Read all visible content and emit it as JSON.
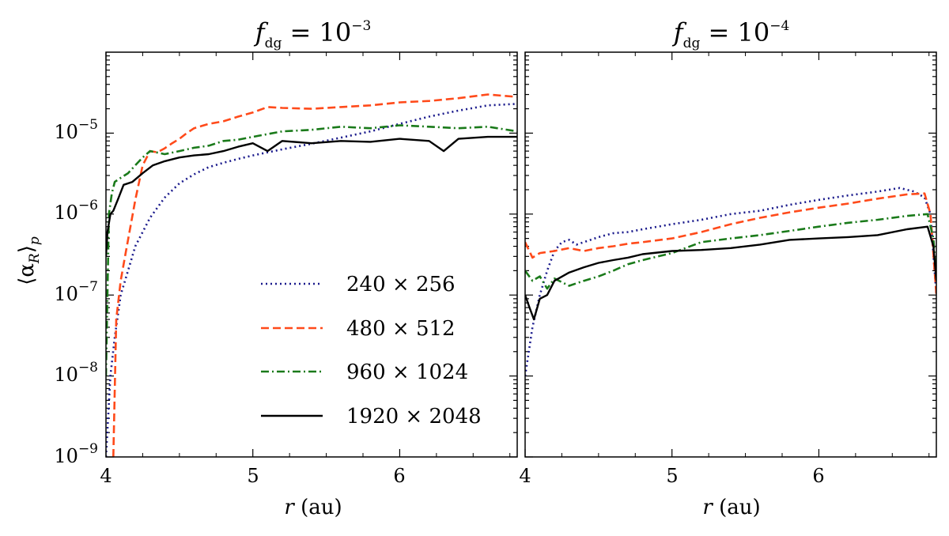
{
  "chart_data": {
    "type": "line",
    "y_scale": "log",
    "shared_ylabel": "⟨α_R⟩_p",
    "ylabel_parts": {
      "main": "⟨α",
      "sub_r": "R",
      "close": "⟩",
      "sub_p": "p"
    },
    "ylim": [
      1e-09,
      0.0001
    ],
    "y_ticks": [
      {
        "base": "10",
        "exp": "−5",
        "value": 1e-05
      },
      {
        "base": "10",
        "exp": "−6",
        "value": 1e-06
      },
      {
        "base": "10",
        "exp": "−7",
        "value": 1e-07
      },
      {
        "base": "10",
        "exp": "−8",
        "value": 1e-08
      },
      {
        "base": "10",
        "exp": "−9",
        "value": 1e-09
      }
    ],
    "legend": {
      "placement": "lower-right of left panel",
      "entries": [
        {
          "label": "240 × 256",
          "series": "240x256"
        },
        {
          "label": "480 × 512",
          "series": "480x512"
        },
        {
          "label": "960 × 1024",
          "series": "960x1024"
        },
        {
          "label": "1920 × 2048",
          "series": "1920x2048"
        }
      ]
    },
    "series_styles": [
      {
        "id": "240x256",
        "color": "#1a1a8c",
        "dash": "dotted"
      },
      {
        "id": "480x512",
        "color": "#ff4a1a",
        "dash": "dashed"
      },
      {
        "id": "960x1024",
        "color": "#1a7a1a",
        "dash": "dashdot"
      },
      {
        "id": "1920x2048",
        "color": "#000000",
        "dash": "solid"
      }
    ],
    "panels": [
      {
        "id": "left",
        "title_base": "f",
        "title_sub": "dg",
        "title_rest": " = 10",
        "title_exp": "−3",
        "xlabel_var": "r",
        "xlabel_unit": " (au)",
        "xlim": [
          4.0,
          6.8
        ],
        "x_ticks": [
          "4",
          "5",
          "6"
        ],
        "x_tick_values": [
          4,
          5,
          6
        ],
        "series": [
          {
            "id": "240x256",
            "x": [
              4.0,
              4.03,
              4.06,
              4.1,
              4.15,
              4.2,
              4.3,
              4.4,
              4.5,
              4.6,
              4.7,
              4.8,
              4.9,
              5.0,
              5.2,
              5.4,
              5.6,
              5.8,
              6.0,
              6.2,
              6.4,
              6.6,
              6.8
            ],
            "y": [
              1e-09,
              1e-08,
              3e-08,
              1e-07,
              2e-07,
              4e-07,
              9e-07,
              1.6e-06,
              2.4e-06,
              3.1e-06,
              3.8e-06,
              4.3e-06,
              4.8e-06,
              5.3e-06,
              6.3e-06,
              7.4e-06,
              8.8e-06,
              1.05e-05,
              1.3e-05,
              1.6e-05,
              1.9e-05,
              2.2e-05,
              2.3e-05
            ]
          },
          {
            "id": "480x512",
            "x": [
              4.05,
              4.07,
              4.1,
              4.13,
              4.16,
              4.2,
              4.25,
              4.3,
              4.35,
              4.4,
              4.45,
              4.5,
              4.55,
              4.6,
              4.7,
              4.8,
              4.9,
              5.0,
              5.1,
              5.2,
              5.4,
              5.6,
              5.8,
              6.0,
              6.2,
              6.4,
              6.6,
              6.8
            ],
            "y": [
              1e-09,
              5e-08,
              1.5e-07,
              3e-07,
              6e-07,
              1.5e-06,
              4e-06,
              6e-06,
              5.8e-06,
              6.5e-06,
              7.5e-06,
              8.5e-06,
              1e-05,
              1.15e-05,
              1.3e-05,
              1.4e-05,
              1.6e-05,
              1.8e-05,
              2.1e-05,
              2.05e-05,
              2e-05,
              2.1e-05,
              2.2e-05,
              2.4e-05,
              2.5e-05,
              2.7e-05,
              3e-05,
              2.8e-05
            ]
          },
          {
            "id": "960x1024",
            "x": [
              4.0,
              4.02,
              4.04,
              4.06,
              4.1,
              4.15,
              4.2,
              4.25,
              4.3,
              4.4,
              4.5,
              4.6,
              4.7,
              4.8,
              4.9,
              5.0,
              5.2,
              5.4,
              5.6,
              5.8,
              6.0,
              6.2,
              6.4,
              6.6,
              6.8
            ],
            "y": [
              1e-08,
              1e-06,
              1.8e-06,
              2.5e-06,
              2.8e-06,
              3.2e-06,
              4e-06,
              5e-06,
              6e-06,
              5.5e-06,
              6e-06,
              6.6e-06,
              7e-06,
              8e-06,
              8.3e-06,
              9e-06,
              1.05e-05,
              1.1e-05,
              1.2e-05,
              1.15e-05,
              1.25e-05,
              1.2e-05,
              1.15e-05,
              1.2e-05,
              1.05e-05
            ]
          },
          {
            "id": "1920x2048",
            "x": [
              4.0,
              4.01,
              4.03,
              4.05,
              4.08,
              4.12,
              4.18,
              4.25,
              4.32,
              4.4,
              4.5,
              4.6,
              4.7,
              4.8,
              4.9,
              5.0,
              5.1,
              5.2,
              5.4,
              5.6,
              5.8,
              6.0,
              6.2,
              6.3,
              6.4,
              6.6,
              6.8
            ],
            "y": [
              3e-07,
              6e-07,
              1e-06,
              1.1e-06,
              1.5e-06,
              2.3e-06,
              2.5e-06,
              3.2e-06,
              4e-06,
              4.5e-06,
              5e-06,
              5.3e-06,
              5.5e-06,
              6e-06,
              6.8e-06,
              7.5e-06,
              6e-06,
              8e-06,
              7.5e-06,
              8e-06,
              7.8e-06,
              8.5e-06,
              8e-06,
              6e-06,
              8.5e-06,
              9e-06,
              9e-06
            ]
          }
        ]
      },
      {
        "id": "right",
        "title_base": "f",
        "title_sub": "dg",
        "title_rest": " = 10",
        "title_exp": "−4",
        "xlabel_var": "r",
        "xlabel_unit": " (au)",
        "xlim": [
          4.0,
          6.8
        ],
        "x_ticks": [
          "4",
          "5",
          "6"
        ],
        "x_tick_values": [
          4,
          5,
          6
        ],
        "series": [
          {
            "id": "240x256",
            "x": [
              4.0,
              4.05,
              4.1,
              4.15,
              4.2,
              4.25,
              4.3,
              4.35,
              4.4,
              4.5,
              4.6,
              4.7,
              4.8,
              5.0,
              5.2,
              5.4,
              5.6,
              5.8,
              6.0,
              6.2,
              6.4,
              6.55,
              6.65,
              6.72,
              6.76,
              6.8
            ],
            "y": [
              1e-08,
              4e-08,
              1e-07,
              2e-07,
              3.5e-07,
              4.5e-07,
              4.8e-07,
              4.2e-07,
              4.5e-07,
              5.2e-07,
              5.8e-07,
              6e-07,
              6.5e-07,
              7.5e-07,
              8.5e-07,
              1e-06,
              1.1e-06,
              1.3e-06,
              1.5e-06,
              1.7e-06,
              1.9e-06,
              2.1e-06,
              1.9e-06,
              1.6e-06,
              1e-06,
              1e-07
            ]
          },
          {
            "id": "480x512",
            "x": [
              4.0,
              4.05,
              4.1,
              4.2,
              4.3,
              4.4,
              4.5,
              4.6,
              4.7,
              4.8,
              5.0,
              5.2,
              5.4,
              5.6,
              5.8,
              6.0,
              6.2,
              6.4,
              6.6,
              6.72,
              6.76,
              6.8
            ],
            "y": [
              4.5e-07,
              2.9e-07,
              3.3e-07,
              3.5e-07,
              3.8e-07,
              3.5e-07,
              3.8e-07,
              4e-07,
              4.3e-07,
              4.5e-07,
              5e-07,
              6e-07,
              7.5e-07,
              9e-07,
              1.05e-06,
              1.2e-06,
              1.35e-06,
              1.55e-06,
              1.75e-06,
              1.8e-06,
              1e-06,
              1e-07
            ]
          },
          {
            "id": "960x1024",
            "x": [
              4.0,
              4.05,
              4.1,
              4.15,
              4.2,
              4.3,
              4.4,
              4.5,
              4.6,
              4.7,
              4.8,
              5.0,
              5.2,
              5.4,
              5.6,
              5.8,
              6.0,
              6.2,
              6.4,
              6.6,
              6.74,
              6.78,
              6.8
            ],
            "y": [
              2e-07,
              1.5e-07,
              1.7e-07,
              1.2e-07,
              1.6e-07,
              1.3e-07,
              1.5e-07,
              1.7e-07,
              2e-07,
              2.4e-07,
              2.7e-07,
              3.3e-07,
              4.5e-07,
              5e-07,
              5.5e-07,
              6.2e-07,
              7e-07,
              7.8e-07,
              8.5e-07,
              9.5e-07,
              1e-06,
              5e-07,
              1.5e-07
            ]
          },
          {
            "id": "1920x2048",
            "x": [
              4.0,
              4.03,
              4.06,
              4.1,
              4.15,
              4.2,
              4.3,
              4.4,
              4.5,
              4.6,
              4.7,
              4.8,
              5.0,
              5.2,
              5.4,
              5.6,
              5.8,
              6.0,
              6.2,
              6.4,
              6.6,
              6.74,
              6.78,
              6.8
            ],
            "y": [
              1e-07,
              7e-08,
              5e-08,
              9e-08,
              1e-07,
              1.5e-07,
              1.9e-07,
              2.2e-07,
              2.5e-07,
              2.7e-07,
              2.9e-07,
              3.2e-07,
              3.5e-07,
              3.6e-07,
              3.8e-07,
              4.2e-07,
              4.8e-07,
              5e-07,
              5.2e-07,
              5.5e-07,
              6.5e-07,
              7e-07,
              4e-07,
              1.5e-07
            ]
          }
        ]
      }
    ]
  }
}
